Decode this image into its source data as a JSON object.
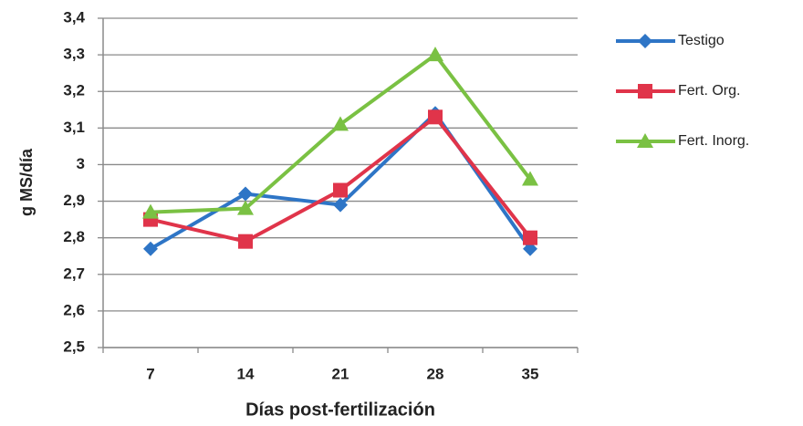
{
  "chart_data": {
    "type": "line",
    "ylabel": "g MS/día",
    "xlabel": "Días post-fertilización",
    "categories": [
      "7",
      "14",
      "21",
      "28",
      "35"
    ],
    "series": [
      {
        "name": "Testigo",
        "color": "#2e75c6",
        "marker": "diamond",
        "values": [
          2.77,
          2.92,
          2.89,
          3.14,
          2.77
        ]
      },
      {
        "name": "Fert. Org.",
        "color": "#e0344a",
        "marker": "square",
        "values": [
          2.85,
          2.79,
          2.93,
          3.13,
          2.8
        ]
      },
      {
        "name": "Fert. Inorg.",
        "color": "#7ac143",
        "marker": "triangle",
        "values": [
          2.87,
          2.88,
          3.11,
          3.3,
          2.96
        ]
      }
    ],
    "ylim": [
      2.5,
      3.4
    ],
    "yticks": [
      {
        "value": 2.5,
        "label": "2,5"
      },
      {
        "value": 2.6,
        "label": "2,6"
      },
      {
        "value": 2.7,
        "label": "2,7"
      },
      {
        "value": 2.8,
        "label": "2,8"
      },
      {
        "value": 2.9,
        "label": "2,9"
      },
      3,
      {
        "value": 3.1,
        "label": "3,1"
      },
      {
        "value": 3.2,
        "label": "3,2"
      },
      {
        "value": 3.3,
        "label": "3,3"
      },
      {
        "value": 3.4,
        "label": "3,4"
      }
    ],
    "grid": true,
    "legend": "right"
  }
}
